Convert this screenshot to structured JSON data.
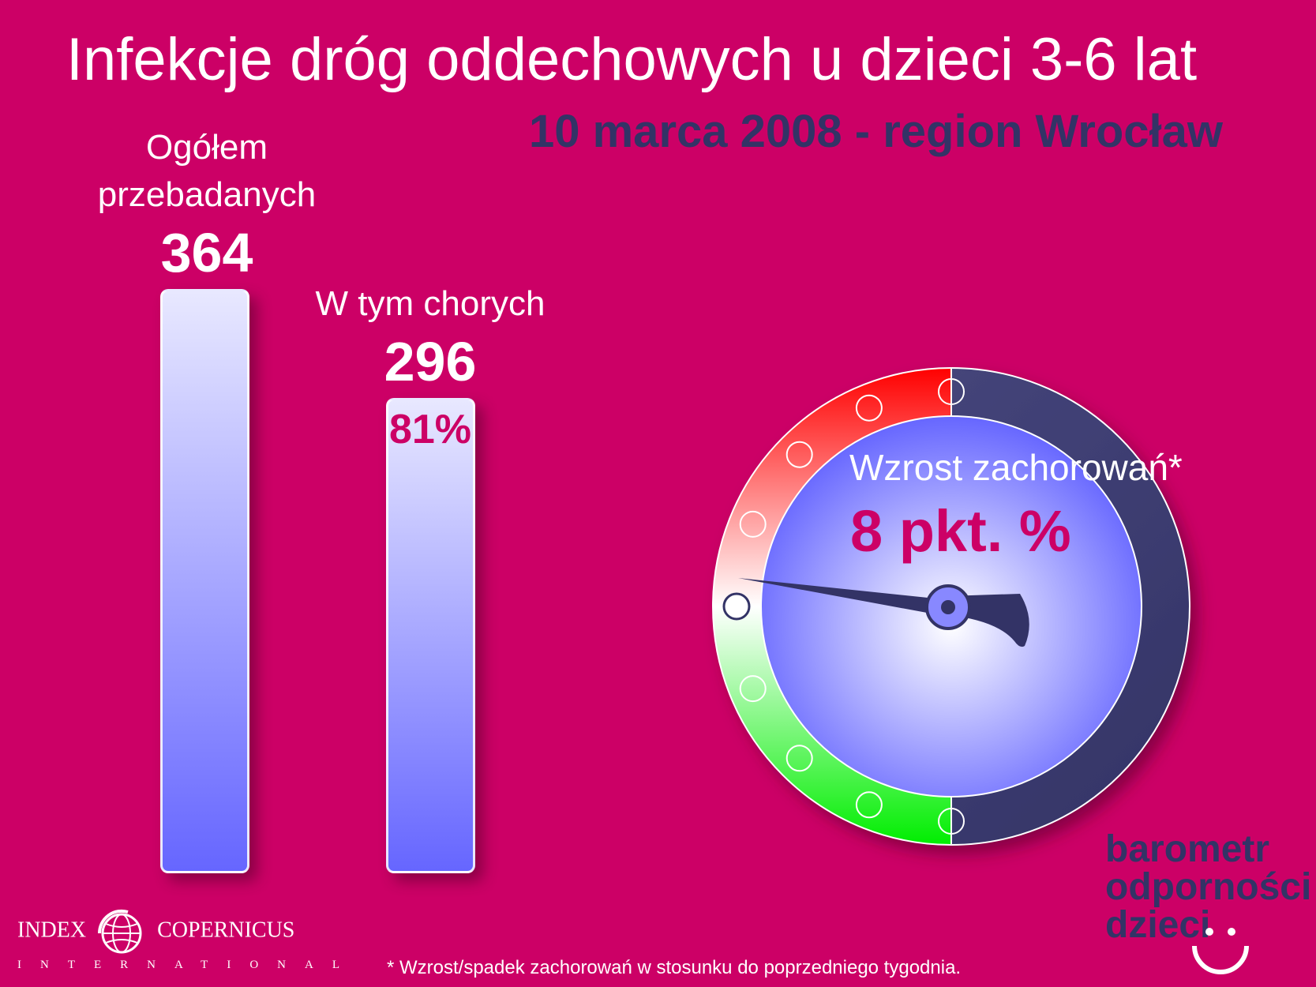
{
  "header": {
    "title": "Infekcje dróg oddechowych u dzieci 3-6 lat",
    "subtitle": "10 marca 2008 - region Wrocław"
  },
  "chart_data": [
    {
      "type": "bar",
      "categories": [
        "Ogółem przebadanych",
        "W tym chorych"
      ],
      "category_lines": [
        [
          "Ogółem",
          "przebadanych"
        ],
        [
          "W tym chorych"
        ]
      ],
      "values": [
        364,
        296
      ],
      "value_labels": [
        "364",
        "296"
      ],
      "percent_label": "81%",
      "percent_of_total": 81,
      "colors": {
        "top": "#e8e8ff",
        "bottom": "#6666ff"
      }
    },
    {
      "type": "gauge",
      "label": "Wzrost zachorowań*",
      "value_label": "8 pkt. %",
      "value": 8,
      "zones": [
        "#00ee00",
        "#ffffff",
        "#ff0000"
      ],
      "marker_count": 9,
      "active_marker": 4,
      "dial_color": "#6666ff",
      "bezel_color": "#333366"
    }
  ],
  "footer": {
    "logo_main_left": "INDEX",
    "logo_main_right": "COPERNICUS",
    "logo_sub": "INTERNATIONAL",
    "footnote": "* Wzrost/spadek zachorowań w stosunku do poprzedniego tygodnia.",
    "brand_lines": [
      "barometr",
      "odporności",
      "dzieci"
    ]
  }
}
